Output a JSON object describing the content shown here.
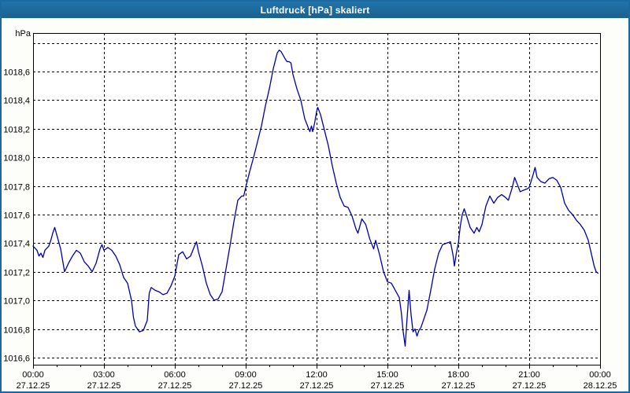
{
  "window": {
    "title": "Luftdruck [hPa] skaliert",
    "titlebar_color": "#1c699f",
    "border_color": "#1c699f",
    "background_color": "#fdfdf9"
  },
  "chart_data": {
    "type": "line",
    "title": "Luftdruck [hPa] skaliert",
    "xlabel": "",
    "ylabel": "hPa",
    "y_unit_label": "hPa",
    "grid": true,
    "legend": false,
    "line_color": "#0000aa",
    "grid_color": "#000000",
    "axis_color": "#000000",
    "text_color": "#000000",
    "ylim": [
      1016.55,
      1018.87
    ],
    "xlim_hours": [
      0,
      24
    ],
    "y_ticks": [
      {
        "value": 1018.8,
        "label": ""
      },
      {
        "value": 1018.6,
        "label": "1018,6"
      },
      {
        "value": 1018.4,
        "label": "1018,4"
      },
      {
        "value": 1018.2,
        "label": "1018,2"
      },
      {
        "value": 1018.0,
        "label": "1018,0"
      },
      {
        "value": 1017.8,
        "label": "1017,8"
      },
      {
        "value": 1017.6,
        "label": "1017,6"
      },
      {
        "value": 1017.4,
        "label": "1017,4"
      },
      {
        "value": 1017.2,
        "label": "1017,2"
      },
      {
        "value": 1017.0,
        "label": "1017,0"
      },
      {
        "value": 1016.8,
        "label": "1016,8"
      },
      {
        "value": 1016.6,
        "label": "1016,6"
      }
    ],
    "x_ticks": [
      {
        "hour": 0,
        "time": "00:00",
        "date": "27.12.25"
      },
      {
        "hour": 3,
        "time": "03:00",
        "date": "27.12.25"
      },
      {
        "hour": 6,
        "time": "06:00",
        "date": "27.12.25"
      },
      {
        "hour": 9,
        "time": "09:00",
        "date": "27.12.25"
      },
      {
        "hour": 12,
        "time": "12:00",
        "date": "27.12.25"
      },
      {
        "hour": 15,
        "time": "15:00",
        "date": "27.12.25"
      },
      {
        "hour": 18,
        "time": "18:00",
        "date": "27.12.25"
      },
      {
        "hour": 21,
        "time": "21:00",
        "date": "27.12.25"
      },
      {
        "hour": 24,
        "time": "00:00",
        "date": "28.12.25"
      }
    ],
    "minor_tick_every_hours": 1,
    "series": [
      {
        "name": "Luftdruck",
        "unit": "hPa",
        "points": [
          [
            "00:00",
            1017.38
          ],
          [
            "00:10",
            1017.35
          ],
          [
            "00:15",
            1017.31
          ],
          [
            "00:20",
            1017.33
          ],
          [
            "00:25",
            1017.3
          ],
          [
            "00:30",
            1017.35
          ],
          [
            "00:40",
            1017.38
          ],
          [
            "00:45",
            1017.42
          ],
          [
            "00:50",
            1017.47
          ],
          [
            "00:55",
            1017.51
          ],
          [
            "01:00",
            1017.46
          ],
          [
            "01:10",
            1017.36
          ],
          [
            "01:20",
            1017.2
          ],
          [
            "01:30",
            1017.26
          ],
          [
            "01:40",
            1017.31
          ],
          [
            "01:50",
            1017.35
          ],
          [
            "02:00",
            1017.33
          ],
          [
            "02:10",
            1017.27
          ],
          [
            "02:20",
            1017.24
          ],
          [
            "02:30",
            1017.2
          ],
          [
            "02:40",
            1017.26
          ],
          [
            "02:50",
            1017.36
          ],
          [
            "02:55",
            1017.39
          ],
          [
            "03:00",
            1017.35
          ],
          [
            "03:10",
            1017.37
          ],
          [
            "03:20",
            1017.35
          ],
          [
            "03:30",
            1017.31
          ],
          [
            "03:40",
            1017.25
          ],
          [
            "03:50",
            1017.16
          ],
          [
            "04:00",
            1017.12
          ],
          [
            "04:10",
            1017.0
          ],
          [
            "04:15",
            1016.88
          ],
          [
            "04:20",
            1016.82
          ],
          [
            "04:30",
            1016.78
          ],
          [
            "04:40",
            1016.79
          ],
          [
            "04:50",
            1016.86
          ],
          [
            "04:55",
            1017.05
          ],
          [
            "05:00",
            1017.09
          ],
          [
            "05:10",
            1017.07
          ],
          [
            "05:20",
            1017.06
          ],
          [
            "05:30",
            1017.04
          ],
          [
            "05:40",
            1017.05
          ],
          [
            "05:50",
            1017.1
          ],
          [
            "06:00",
            1017.17
          ],
          [
            "06:10",
            1017.32
          ],
          [
            "06:20",
            1017.34
          ],
          [
            "06:30",
            1017.29
          ],
          [
            "06:40",
            1017.31
          ],
          [
            "06:50",
            1017.38
          ],
          [
            "06:55",
            1017.41
          ],
          [
            "07:00",
            1017.34
          ],
          [
            "07:10",
            1017.24
          ],
          [
            "07:20",
            1017.12
          ],
          [
            "07:30",
            1017.04
          ],
          [
            "07:40",
            1017.0
          ],
          [
            "07:50",
            1017.01
          ],
          [
            "08:00",
            1017.06
          ],
          [
            "08:10",
            1017.22
          ],
          [
            "08:20",
            1017.38
          ],
          [
            "08:30",
            1017.55
          ],
          [
            "08:40",
            1017.7
          ],
          [
            "08:50",
            1017.73
          ],
          [
            "08:55",
            1017.73
          ],
          [
            "09:00",
            1017.79
          ],
          [
            "09:10",
            1017.9
          ],
          [
            "09:20",
            1018.0
          ],
          [
            "09:30",
            1018.11
          ],
          [
            "09:40",
            1018.22
          ],
          [
            "09:50",
            1018.36
          ],
          [
            "10:00",
            1018.48
          ],
          [
            "10:10",
            1018.62
          ],
          [
            "10:20",
            1018.73
          ],
          [
            "10:25",
            1018.75
          ],
          [
            "10:30",
            1018.74
          ],
          [
            "10:40",
            1018.69
          ],
          [
            "10:45",
            1018.67
          ],
          [
            "10:50",
            1018.67
          ],
          [
            "10:55",
            1018.66
          ],
          [
            "11:00",
            1018.58
          ],
          [
            "11:10",
            1018.48
          ],
          [
            "11:20",
            1018.4
          ],
          [
            "11:30",
            1018.27
          ],
          [
            "11:40",
            1018.2
          ],
          [
            "11:43",
            1018.18
          ],
          [
            "11:47",
            1018.22
          ],
          [
            "11:50",
            1018.18
          ],
          [
            "11:55",
            1018.24
          ],
          [
            "12:00",
            1018.32
          ],
          [
            "12:03",
            1018.35
          ],
          [
            "12:10",
            1018.3
          ],
          [
            "12:20",
            1018.19
          ],
          [
            "12:30",
            1018.08
          ],
          [
            "12:40",
            1017.94
          ],
          [
            "12:50",
            1017.82
          ],
          [
            "13:00",
            1017.72
          ],
          [
            "13:10",
            1017.66
          ],
          [
            "13:20",
            1017.65
          ],
          [
            "13:30",
            1017.59
          ],
          [
            "13:40",
            1017.5
          ],
          [
            "13:45",
            1017.47
          ],
          [
            "13:55",
            1017.57
          ],
          [
            "14:05",
            1017.53
          ],
          [
            "14:15",
            1017.43
          ],
          [
            "14:25",
            1017.36
          ],
          [
            "14:30",
            1017.42
          ],
          [
            "14:40",
            1017.32
          ],
          [
            "14:50",
            1017.2
          ],
          [
            "15:00",
            1017.13
          ],
          [
            "15:10",
            1017.12
          ],
          [
            "15:20",
            1017.07
          ],
          [
            "15:30",
            1017.02
          ],
          [
            "15:35",
            1016.92
          ],
          [
            "15:40",
            1016.78
          ],
          [
            "15:45",
            1016.68
          ],
          [
            "15:50",
            1016.88
          ],
          [
            "15:55",
            1017.07
          ],
          [
            "16:00",
            1016.9
          ],
          [
            "16:05",
            1016.78
          ],
          [
            "16:10",
            1016.8
          ],
          [
            "16:15",
            1016.75
          ],
          [
            "16:20",
            1016.79
          ],
          [
            "16:25",
            1016.81
          ],
          [
            "16:30",
            1016.85
          ],
          [
            "16:40",
            1016.93
          ],
          [
            "16:50",
            1017.07
          ],
          [
            "17:00",
            1017.22
          ],
          [
            "17:10",
            1017.33
          ],
          [
            "17:20",
            1017.39
          ],
          [
            "17:30",
            1017.4
          ],
          [
            "17:40",
            1017.41
          ],
          [
            "17:47",
            1017.31
          ],
          [
            "17:50",
            1017.24
          ],
          [
            "17:55",
            1017.33
          ],
          [
            "18:00",
            1017.4
          ],
          [
            "18:05",
            1017.52
          ],
          [
            "18:10",
            1017.6
          ],
          [
            "18:15",
            1017.64
          ],
          [
            "18:20",
            1017.6
          ],
          [
            "18:30",
            1017.51
          ],
          [
            "18:40",
            1017.47
          ],
          [
            "18:47",
            1017.51
          ],
          [
            "18:53",
            1017.48
          ],
          [
            "19:00",
            1017.53
          ],
          [
            "19:10",
            1017.66
          ],
          [
            "19:20",
            1017.73
          ],
          [
            "19:30",
            1017.68
          ],
          [
            "19:40",
            1017.72
          ],
          [
            "19:50",
            1017.74
          ],
          [
            "20:00",
            1017.72
          ],
          [
            "20:07",
            1017.7
          ],
          [
            "20:17",
            1017.79
          ],
          [
            "20:23",
            1017.86
          ],
          [
            "20:30",
            1017.81
          ],
          [
            "20:37",
            1017.76
          ],
          [
            "20:45",
            1017.77
          ],
          [
            "20:55",
            1017.78
          ],
          [
            "21:00",
            1017.79
          ],
          [
            "21:10",
            1017.88
          ],
          [
            "21:15",
            1017.93
          ],
          [
            "21:20",
            1017.86
          ],
          [
            "21:30",
            1017.83
          ],
          [
            "21:40",
            1017.82
          ],
          [
            "21:50",
            1017.85
          ],
          [
            "22:00",
            1017.86
          ],
          [
            "22:10",
            1017.84
          ],
          [
            "22:20",
            1017.79
          ],
          [
            "22:30",
            1017.68
          ],
          [
            "22:40",
            1017.63
          ],
          [
            "22:50",
            1017.6
          ],
          [
            "23:00",
            1017.56
          ],
          [
            "23:10",
            1017.53
          ],
          [
            "23:20",
            1017.49
          ],
          [
            "23:30",
            1017.42
          ],
          [
            "23:40",
            1017.3
          ],
          [
            "23:45",
            1017.24
          ],
          [
            "23:50",
            1017.2
          ],
          [
            "23:55",
            1017.19
          ]
        ]
      }
    ]
  }
}
